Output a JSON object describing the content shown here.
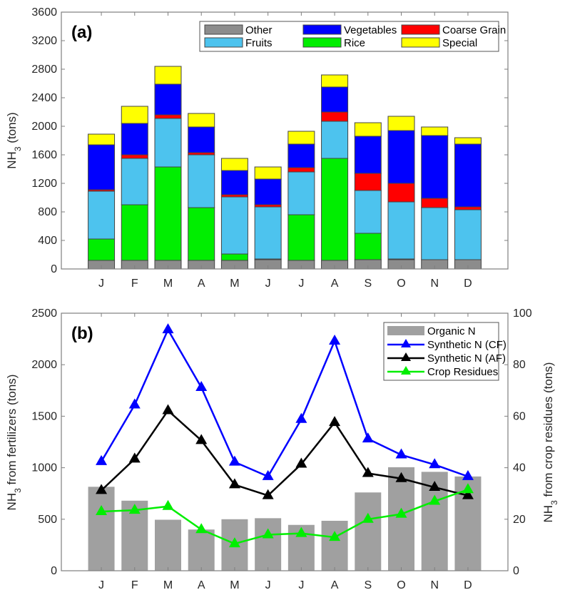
{
  "chart_data": [
    {
      "type": "bar",
      "stacked": true,
      "panel_label": "(a)",
      "title": "",
      "xlabel": "",
      "ylabel": "NH3 (tons)",
      "ylabel_main": "NH",
      "ylabel_sub": "3",
      "ylabel_rest": " (tons)",
      "ylim": [
        0,
        3600
      ],
      "yticks": [
        "0",
        "400",
        "800",
        "1200",
        "1600",
        "2000",
        "2400",
        "2800",
        "3200",
        "3600"
      ],
      "ytick_values": [
        0,
        400,
        800,
        1200,
        1600,
        2000,
        2400,
        2800,
        3200,
        3600
      ],
      "grid": false,
      "legend_position": "top-right",
      "categories": [
        "J",
        "F",
        "M",
        "A",
        "M",
        "J",
        "J",
        "A",
        "S",
        "O",
        "N",
        "D"
      ],
      "series": [
        {
          "name": "Other",
          "color": "#8c8c8c",
          "values": [
            120,
            120,
            120,
            120,
            120,
            130,
            120,
            120,
            130,
            130,
            130,
            130
          ]
        },
        {
          "name": "Rice",
          "color": "#00ee00",
          "values": [
            300,
            780,
            1310,
            740,
            90,
            10,
            640,
            1430,
            370,
            10,
            0,
            0
          ]
        },
        {
          "name": "Fruits",
          "color": "#4dc3ee",
          "values": [
            670,
            650,
            680,
            740,
            800,
            730,
            600,
            520,
            600,
            800,
            730,
            700
          ]
        },
        {
          "name": "Coarse Grain",
          "color": "#ff0000",
          "values": [
            20,
            50,
            50,
            30,
            30,
            30,
            60,
            130,
            240,
            260,
            130,
            40
          ]
        },
        {
          "name": "Vegetables",
          "color": "#0000ff",
          "values": [
            630,
            440,
            430,
            360,
            340,
            360,
            330,
            350,
            520,
            740,
            880,
            880
          ]
        },
        {
          "name": "Special",
          "color": "#ffff00",
          "values": [
            150,
            240,
            250,
            190,
            170,
            170,
            180,
            170,
            190,
            200,
            120,
            90
          ]
        }
      ],
      "legend_order": [
        0,
        2,
        4,
        1,
        3,
        5
      ]
    },
    {
      "type": "bar+line",
      "panel_label": "(b)",
      "title": "",
      "xlabel": "",
      "ylabel_left": "NH3 from fertilizers (tons)",
      "ylabel_left_main": "NH",
      "ylabel_left_sub": "3",
      "ylabel_left_rest": " from fertilizers (tons)",
      "ylabel_right": "NH3 from crop residues (tons)",
      "ylabel_right_main": "NH",
      "ylabel_right_sub": "3",
      "ylabel_right_rest": " from crop residues (tons)",
      "ylim_left": [
        0,
        2500
      ],
      "ylim_right": [
        0,
        100
      ],
      "yticks_left": [
        "0",
        "500",
        "1000",
        "1500",
        "2000",
        "2500"
      ],
      "ytick_values_left": [
        0,
        500,
        1000,
        1500,
        2000,
        2500
      ],
      "yticks_right": [
        "0",
        "20",
        "40",
        "60",
        "80",
        "100"
      ],
      "ytick_values_right": [
        0,
        20,
        40,
        60,
        80,
        100
      ],
      "grid": false,
      "legend_position": "top-right",
      "categories": [
        "J",
        "F",
        "M",
        "A",
        "M",
        "J",
        "J",
        "A",
        "S",
        "O",
        "N",
        "D"
      ],
      "series": [
        {
          "name": "Organic N",
          "type": "bar",
          "axis": "left",
          "color": "#a0a0a0",
          "values": [
            815,
            680,
            495,
            400,
            500,
            510,
            445,
            485,
            760,
            1005,
            960,
            915
          ]
        },
        {
          "name": "Synthetic N (CF)",
          "type": "line",
          "marker": "triangle",
          "axis": "left",
          "color": "#0000ff",
          "values": [
            1060,
            1610,
            2340,
            1780,
            1055,
            915,
            1470,
            2230,
            1280,
            1125,
            1030,
            915
          ]
        },
        {
          "name": "Synthetic N (AF)",
          "type": "line",
          "marker": "triangle",
          "axis": "left",
          "color": "#000000",
          "values": [
            780,
            1085,
            1555,
            1265,
            835,
            730,
            1035,
            1440,
            945,
            895,
            810,
            730
          ]
        },
        {
          "name": "Crop Residues",
          "type": "line",
          "marker": "triangle",
          "axis": "right",
          "color": "#00ee00",
          "values": [
            23,
            23.5,
            25,
            16,
            10.5,
            14,
            14.5,
            13,
            20,
            22,
            27,
            31.5
          ]
        }
      ]
    }
  ]
}
